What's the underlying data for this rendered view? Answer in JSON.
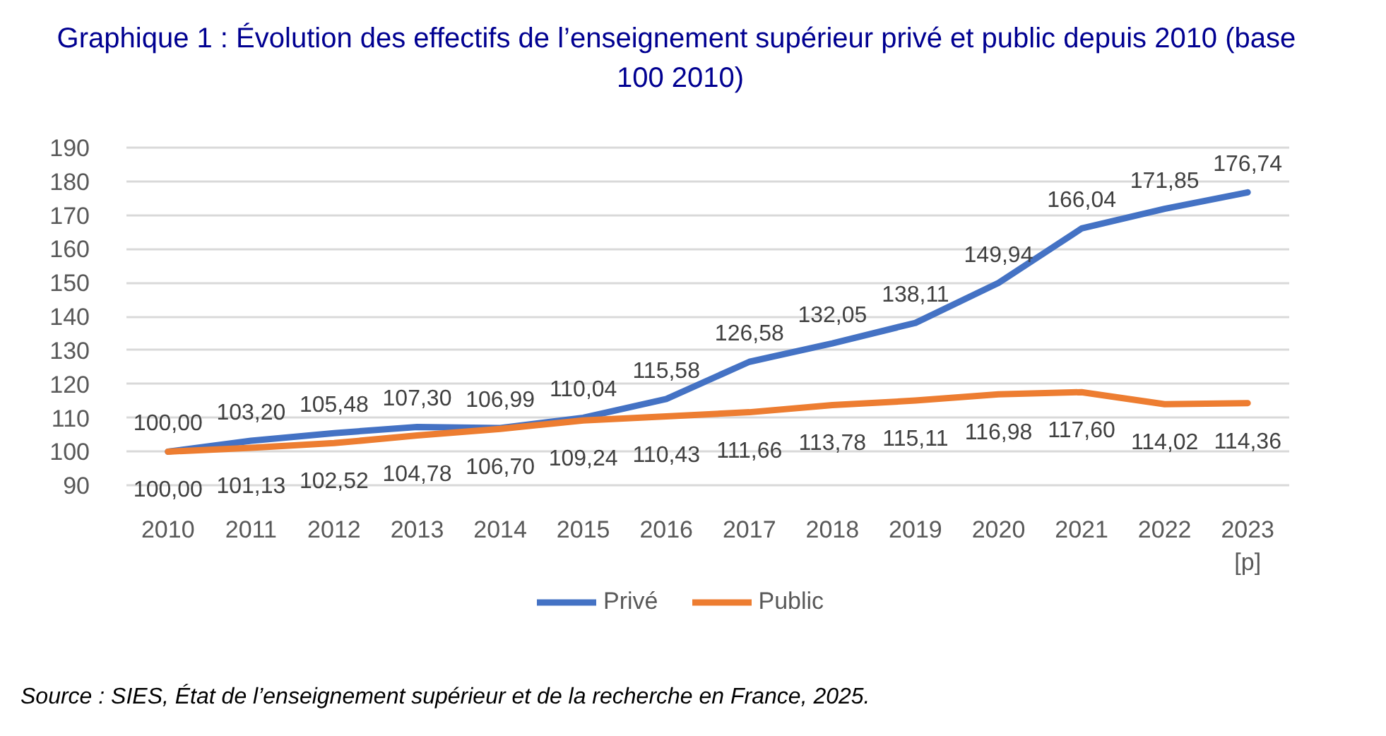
{
  "chart_data": {
    "type": "line",
    "title": "Graphique 1 :  Évolution des effectifs de l’enseignement supérieur privé et public depuis 2010 (base 100 2010)",
    "annotations": [
      "Source : SIES, État de l’enseignement supérieur et de la recherche en France, 2025."
    ],
    "categories": [
      "2010",
      "2011",
      "2012",
      "2013",
      "2014",
      "2015",
      "2016",
      "2017",
      "2018",
      "2019",
      "2020",
      "2021",
      "2022",
      "2023 [p]"
    ],
    "ylim": [
      90,
      190
    ],
    "yticks": [
      90,
      100,
      110,
      120,
      130,
      140,
      150,
      160,
      170,
      180,
      190
    ],
    "grid": "y",
    "legend": "bottom",
    "series": [
      {
        "name": "Privé",
        "color": "#4472c4",
        "values": [
          100.0,
          103.2,
          105.48,
          107.3,
          106.99,
          110.04,
          115.58,
          126.58,
          132.05,
          138.11,
          149.94,
          166.04,
          171.85,
          176.74
        ],
        "value_labels": [
          "100,00",
          "103,20",
          "105,48",
          "107,30",
          "106,99",
          "110,04",
          "115,58",
          "126,58",
          "132,05",
          "138,11",
          "149,94",
          "166,04",
          "171,85",
          "176,74"
        ]
      },
      {
        "name": "Public",
        "color": "#ed7d31",
        "values": [
          100.0,
          101.13,
          102.52,
          104.78,
          106.7,
          109.24,
          110.43,
          111.66,
          113.78,
          115.11,
          116.98,
          117.6,
          114.02,
          114.36
        ],
        "value_labels": [
          "100,00",
          "101,13",
          "102,52",
          "104,78",
          "106,70",
          "109,24",
          "110,43",
          "111,66",
          "113,78",
          "115,11",
          "116,98",
          "117,60",
          "114,02",
          "114,36"
        ]
      }
    ]
  }
}
